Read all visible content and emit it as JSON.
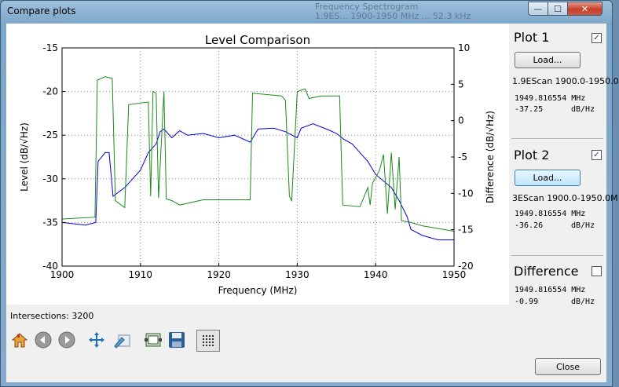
{
  "window": {
    "title": "Compare plots",
    "background_title_line1": "Frequency Spectrogram",
    "background_title_line2": "1.9ES... 1900-1950 MHz ... 52.3 kHz",
    "minimize_glyph": "—",
    "maximize_glyph": "☐",
    "close_glyph": "✕"
  },
  "status": {
    "intersections": "Intersections: 3200"
  },
  "toolbar": {
    "icons": [
      "home-icon",
      "back-arrow-icon",
      "forward-arrow-icon",
      "pan-icon",
      "zoom-icon",
      "subplot-config-icon",
      "save-icon",
      "grid-toggle-icon"
    ]
  },
  "plot1": {
    "title": "Plot 1",
    "checked": true,
    "load_label": "Load...",
    "file": "1.9EScan 1900.0-1950.0",
    "freq": "1949.816554 MHz",
    "level": "-37.25",
    "unit": "dB/Hz"
  },
  "plot2": {
    "title": "Plot 2",
    "checked": true,
    "load_label": "Load...",
    "file": "3EScan 1900.0-1950.0M",
    "freq": "1949.816554 MHz",
    "level": "-36.26",
    "unit": "dB/Hz"
  },
  "difference": {
    "title": "Difference",
    "checked": false,
    "freq": "1949.816554 MHz",
    "level": "-0.99",
    "unit": "dB/Hz"
  },
  "close_label": "Close",
  "chart_data": {
    "type": "line",
    "title": "Level Comparison",
    "xlabel": "Frequency (MHz)",
    "ylabel": "Level (dB/√Hz)",
    "y2label": "Difference (dB/√Hz)",
    "xlim": [
      1900,
      1950
    ],
    "ylim": [
      -40,
      -15
    ],
    "y2lim": [
      -20,
      10
    ],
    "xticks": [
      "1900",
      "1910",
      "1920",
      "1930",
      "1940",
      "1950"
    ],
    "yticks": [
      "-15",
      "-20",
      "-25",
      "-30",
      "-35",
      "-40"
    ],
    "y2ticks": [
      "10",
      "5",
      "0",
      "-5",
      "-10",
      "-15",
      "-20"
    ],
    "grid": true,
    "series": [
      {
        "color": "#0000dd",
        "x": [
          1900,
          1903,
          1904.3,
          1904.6,
          1905.5,
          1906,
          1906.5,
          1908,
          1910,
          1911,
          1912,
          1912.5,
          1913,
          1914,
          1915,
          1916,
          1918,
          1920,
          1922,
          1924,
          1925,
          1927,
          1928.5,
          1930,
          1930.5,
          1932,
          1934,
          1935,
          1936,
          1937,
          1938,
          1939,
          1940,
          1942,
          1943,
          1944,
          1944.5,
          1946,
          1948,
          1950
        ],
        "y": [
          -35,
          -35.3,
          -35,
          -28,
          -27,
          -27,
          -32,
          -31,
          -29,
          -27,
          -26,
          -24.6,
          -24.3,
          -25.3,
          -24.5,
          -25,
          -24.8,
          -25.3,
          -25,
          -25.8,
          -24.3,
          -24.2,
          -24.6,
          -25.3,
          -24.2,
          -23.7,
          -24.4,
          -24.8,
          -25.5,
          -26,
          -27,
          -28,
          -29.5,
          -31,
          -32.5,
          -34.3,
          -35.8,
          -36.5,
          -37,
          -37
        ]
      },
      {
        "color": "#1a8a1a",
        "x": [
          1900,
          1904.2,
          1904.5,
          1905.5,
          1906.4,
          1906.8,
          1908,
          1908.5,
          1911,
          1911.3,
          1911.6,
          1912,
          1912.3,
          1913,
          1913.3,
          1914,
          1915,
          1918,
          1924,
          1924.3,
          1928,
          1928.5,
          1929,
          1929.3,
          1930,
          1931,
          1931.5,
          1933,
          1935.4,
          1935.8,
          1938,
          1939,
          1939.3,
          1939.6,
          1940.5,
          1941,
          1941.5,
          1942,
          1942.5,
          1943,
          1943.3,
          1944.5,
          1946,
          1950
        ],
        "y": [
          -34.6,
          -34.4,
          -18.7,
          -18.3,
          -18.5,
          -32.5,
          -33.3,
          -21.5,
          -21.2,
          -32,
          -20,
          -20.2,
          -32.2,
          -20,
          -32.3,
          -32.5,
          -33,
          -32.4,
          -32.4,
          -20.2,
          -20.5,
          -21,
          -32,
          -32.5,
          -20,
          -19.7,
          -20.8,
          -20.5,
          -20.5,
          -33,
          -33.2,
          -31,
          -33,
          -30.5,
          -29,
          -27.2,
          -34,
          -27,
          -33.5,
          -27.5,
          -34.8,
          -35,
          -35.4,
          -36
        ]
      }
    ]
  }
}
